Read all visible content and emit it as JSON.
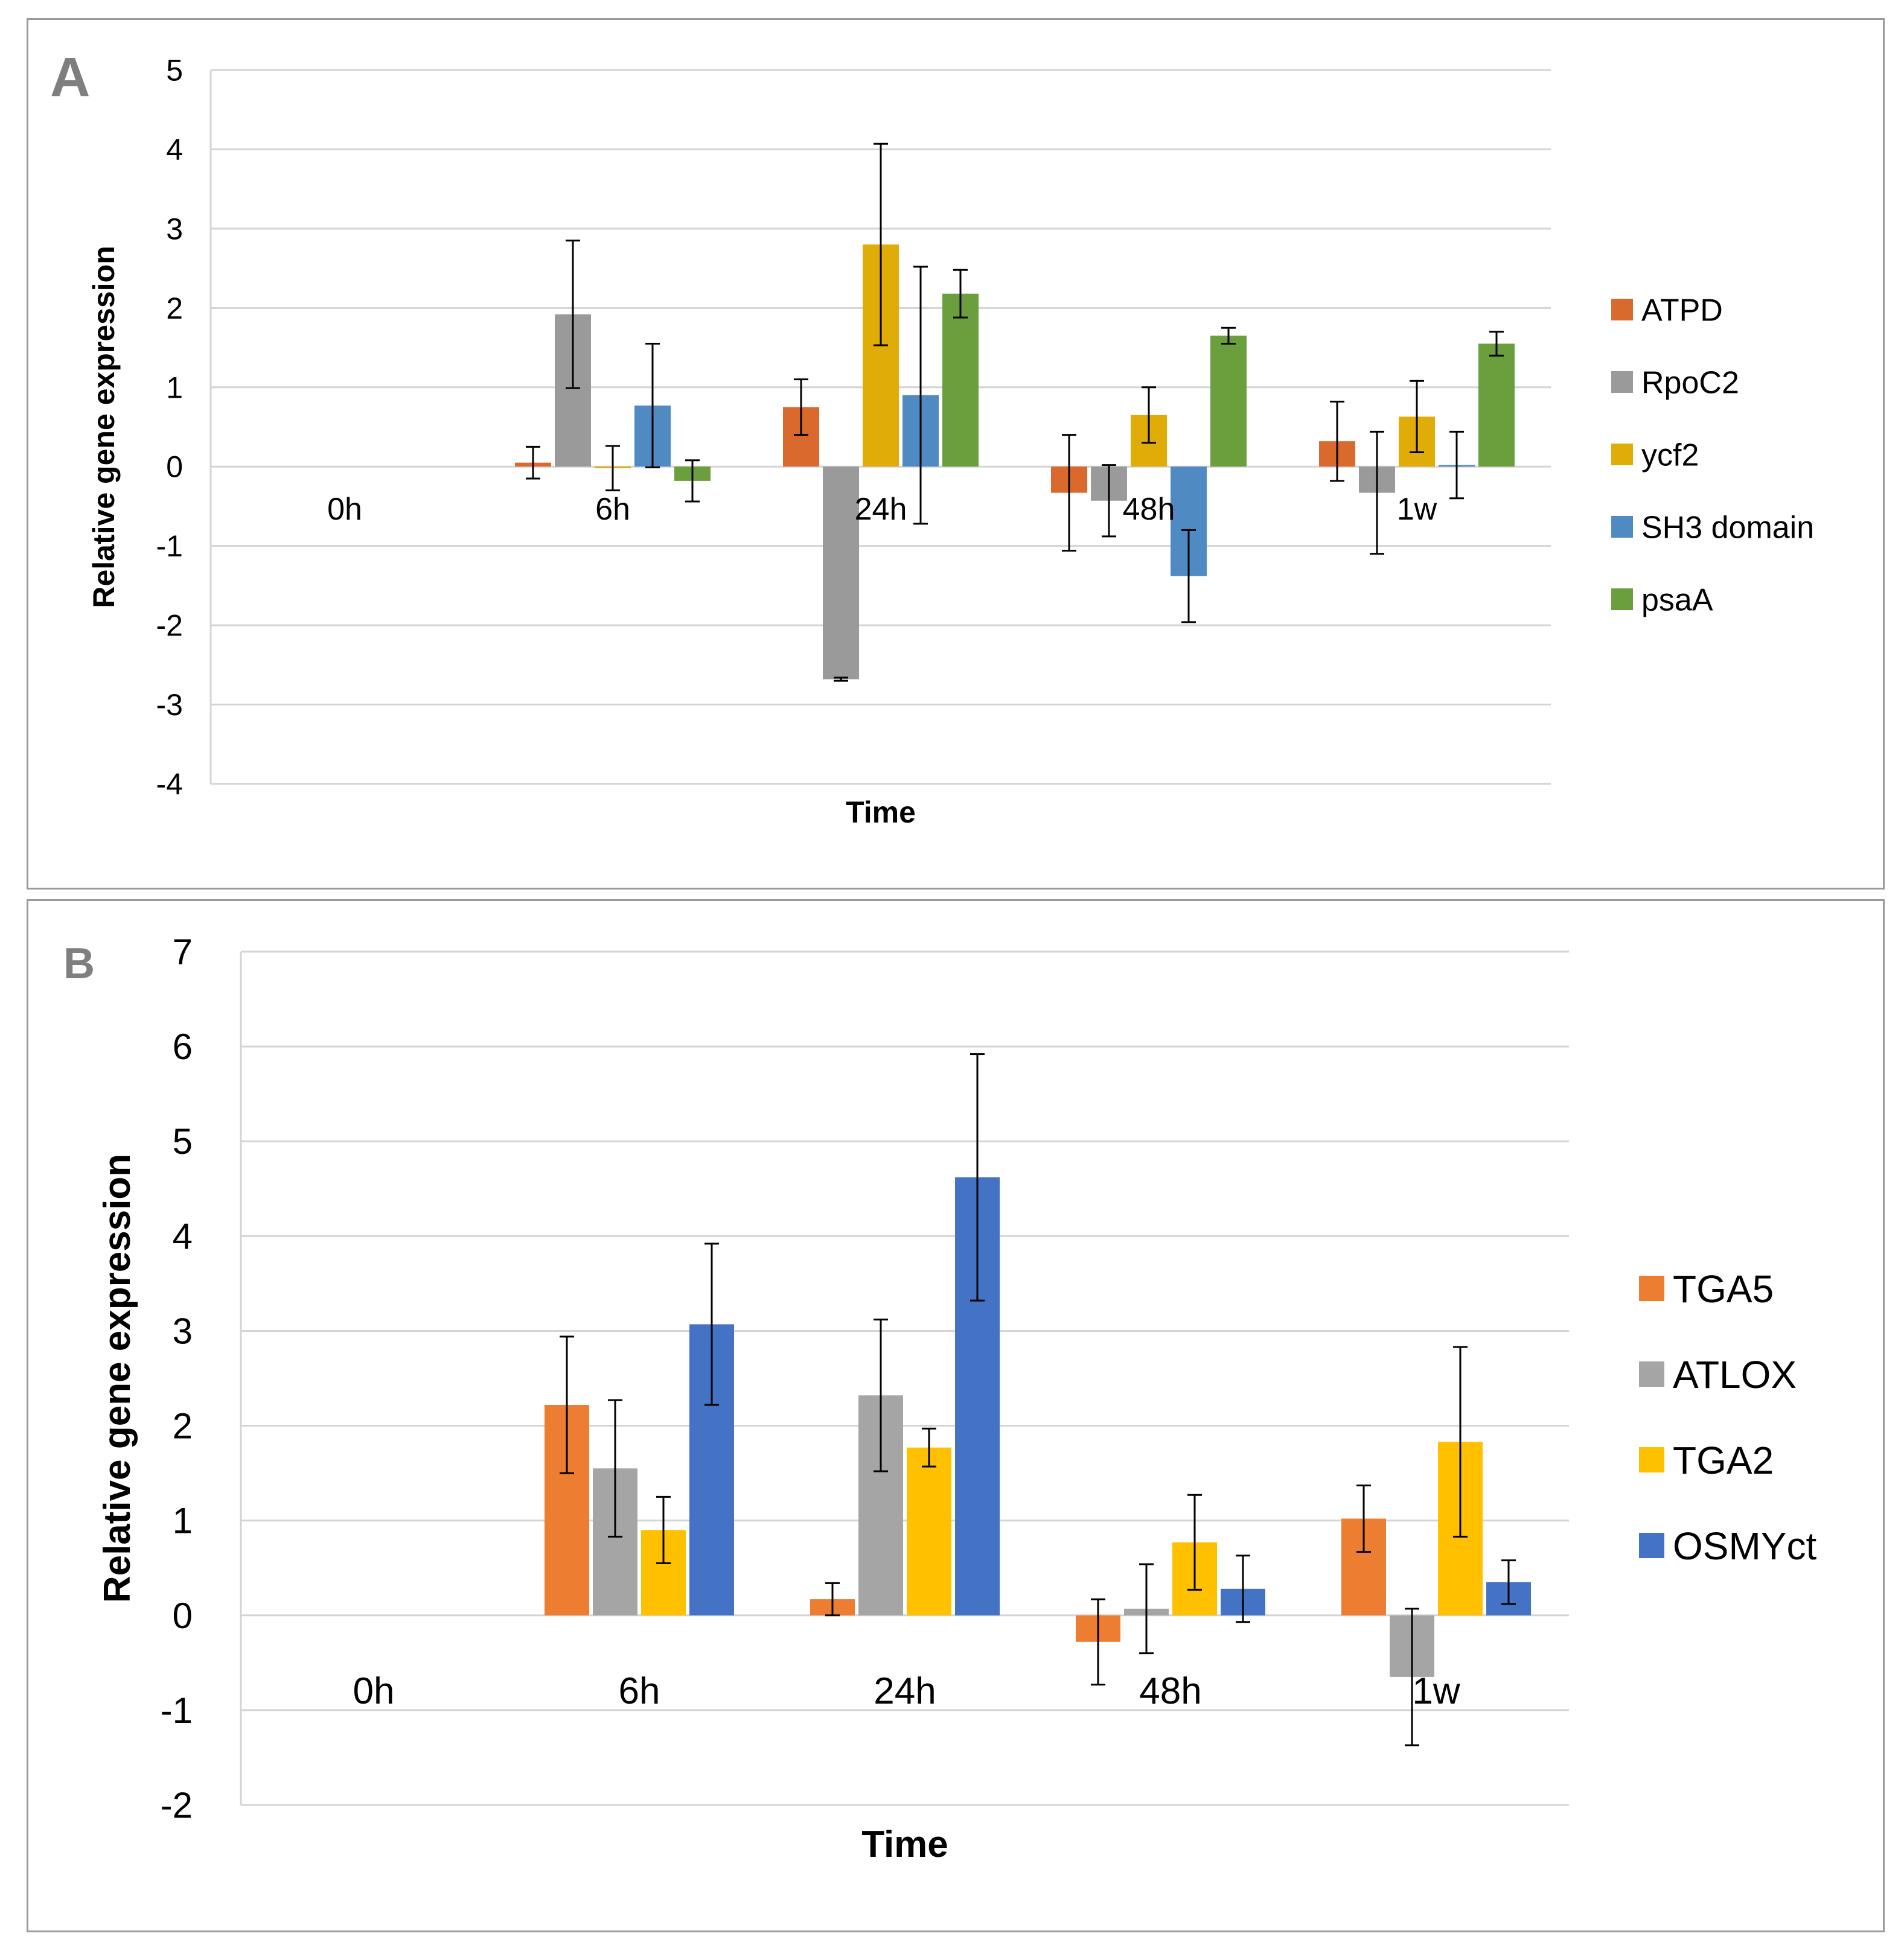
{
  "chart_data": [
    {
      "type": "bar",
      "panel_label": "A",
      "title": "",
      "xlabel": "Time",
      "ylabel": "Relative gene expression",
      "categories": [
        "0h",
        "6h",
        "24h",
        "48h",
        "1w"
      ],
      "ylim": [
        -4,
        5
      ],
      "yticks": [
        5,
        4,
        3,
        2,
        1,
        0,
        -1,
        -2,
        -3,
        -4
      ],
      "grid": true,
      "legend_position": "right",
      "series": [
        {
          "name": "ATPD",
          "color": "#D9692C",
          "values": [
            0,
            0.05,
            0.75,
            -0.33,
            0.32
          ],
          "errors": [
            0,
            0.2,
            0.35,
            0.73,
            0.5
          ]
        },
        {
          "name": "RpoC2",
          "color": "#9A9A9A",
          "values": [
            0,
            1.92,
            -2.68,
            -0.43,
            -0.33
          ],
          "errors": [
            0,
            0.93,
            0.02,
            0.45,
            0.77
          ]
        },
        {
          "name": "ycf2",
          "color": "#E0AC08",
          "values": [
            0,
            -0.02,
            2.8,
            0.65,
            0.63
          ],
          "errors": [
            0,
            0.28,
            1.27,
            0.35,
            0.45
          ]
        },
        {
          "name": "SH3 domain",
          "color": "#4F8AC3",
          "values": [
            0,
            0.77,
            0.9,
            -1.38,
            0.02
          ],
          "errors": [
            0,
            0.78,
            1.62,
            0.58,
            0.42
          ]
        },
        {
          "name": "psaA",
          "color": "#6B9E3C",
          "values": [
            0,
            -0.18,
            2.18,
            1.65,
            1.55
          ],
          "errors": [
            0,
            0.26,
            0.3,
            0.1,
            0.15
          ]
        }
      ]
    },
    {
      "type": "bar",
      "panel_label": "B",
      "title": "",
      "xlabel": "Time",
      "ylabel": "Relative gene expression",
      "categories": [
        "0h",
        "6h",
        "24h",
        "48h",
        "1w"
      ],
      "ylim": [
        -2,
        7
      ],
      "yticks": [
        7,
        6,
        5,
        4,
        3,
        2,
        1,
        0,
        -1,
        -2
      ],
      "grid": true,
      "legend_position": "right",
      "series": [
        {
          "name": "TGA5",
          "color": "#ED7D31",
          "values": [
            0,
            2.22,
            0.17,
            -0.28,
            1.02
          ],
          "errors": [
            0,
            0.72,
            0.17,
            0.45,
            0.35
          ]
        },
        {
          "name": "ATLOX",
          "color": "#A5A5A5",
          "values": [
            0,
            1.55,
            2.32,
            0.07,
            -0.65
          ],
          "errors": [
            0,
            0.72,
            0.8,
            0.47,
            0.72
          ]
        },
        {
          "name": "TGA2",
          "color": "#FFC000",
          "values": [
            0,
            0.9,
            1.77,
            0.77,
            1.83
          ],
          "errors": [
            0,
            0.35,
            0.2,
            0.5,
            1.0
          ]
        },
        {
          "name": "OSMYct",
          "color": "#4472C4",
          "values": [
            0,
            3.07,
            4.62,
            0.28,
            0.35
          ],
          "errors": [
            0,
            0.85,
            1.3,
            0.35,
            0.23
          ]
        }
      ]
    }
  ]
}
